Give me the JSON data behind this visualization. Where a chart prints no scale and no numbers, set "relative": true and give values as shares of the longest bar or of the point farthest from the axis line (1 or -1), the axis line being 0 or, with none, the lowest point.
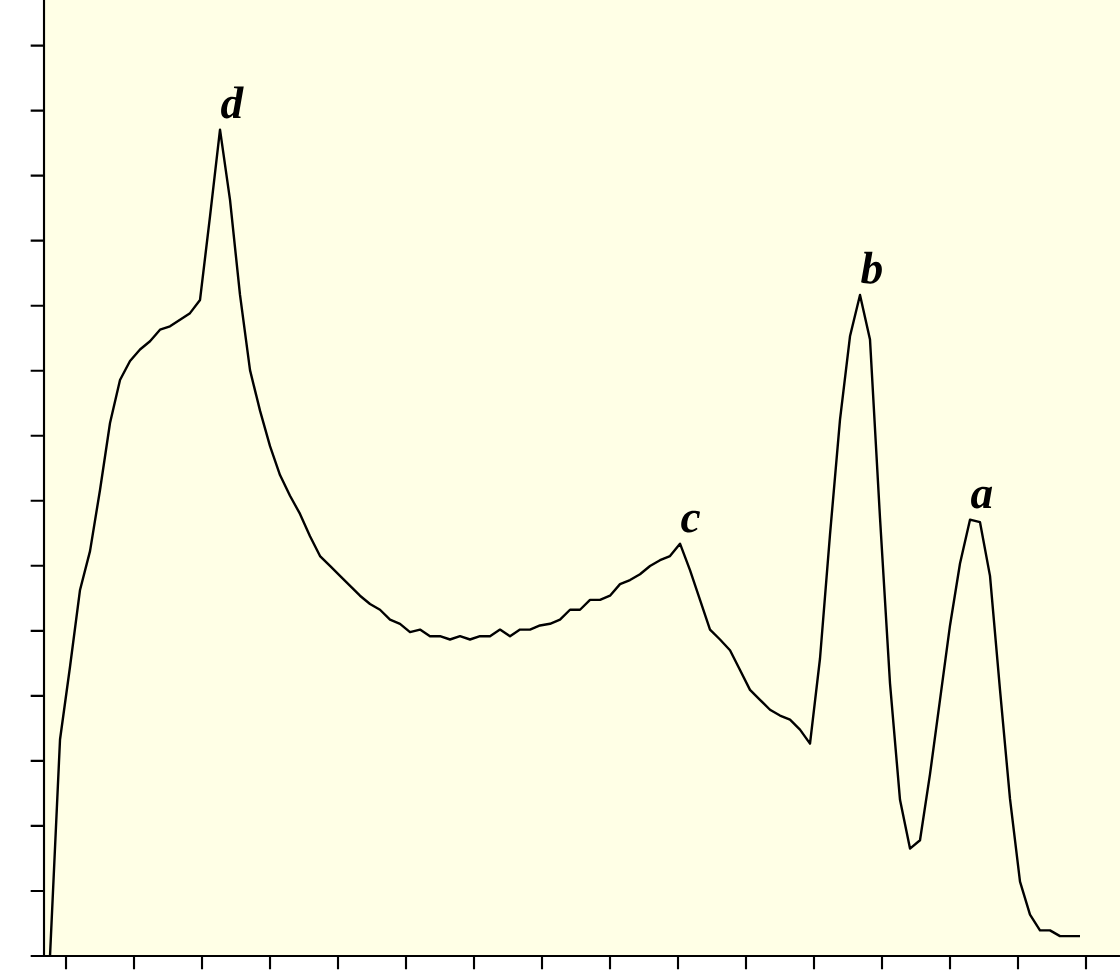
{
  "chart_data": {
    "type": "line",
    "relative": true,
    "color": "#000000",
    "categories": [
      null,
      null,
      null,
      null,
      null,
      null,
      null,
      null,
      null,
      null,
      null,
      null,
      null,
      null,
      null,
      null,
      null,
      null,
      null,
      null,
      null,
      null,
      null,
      null,
      null,
      null,
      null,
      null,
      null,
      null,
      null,
      null,
      null,
      null,
      null,
      null,
      null,
      null,
      null,
      null,
      null,
      null,
      null,
      null,
      null,
      null,
      null,
      null,
      null,
      null,
      null,
      null,
      null,
      null,
      null,
      null,
      null,
      null,
      null,
      null,
      null,
      null,
      null,
      null,
      null,
      null,
      null,
      null,
      null,
      null,
      null,
      null,
      null,
      null,
      null,
      null,
      null,
      null,
      null,
      null,
      null,
      null,
      null,
      null,
      null,
      null,
      null,
      null,
      null,
      null,
      null,
      null,
      null,
      null,
      null,
      null,
      null,
      null,
      null,
      null,
      null,
      null,
      null,
      null
    ],
    "values": [
      0,
      0.262,
      0.35,
      0.443,
      0.49,
      0.564,
      0.645,
      0.697,
      0.72,
      0.734,
      0.744,
      0.758,
      0.762,
      0.77,
      0.778,
      0.794,
      0.895,
      1,
      0.915,
      0.8,
      0.709,
      0.66,
      0.617,
      0.582,
      0.557,
      0.535,
      0.508,
      0.484,
      0.472,
      0.46,
      0.448,
      0.436,
      0.426,
      0.419,
      0.407,
      0.402,
      0.392,
      0.395,
      0.387,
      0.387,
      0.383,
      0.387,
      0.383,
      0.387,
      0.387,
      0.395,
      0.387,
      0.395,
      0.395,
      0.4,
      0.402,
      0.407,
      0.419,
      0.419,
      0.431,
      0.431,
      0.436,
      0.45,
      0.455,
      0.462,
      0.472,
      0.479,
      0.484,
      0.499,
      0.467,
      0.431,
      0.395,
      0.383,
      0.37,
      0.346,
      0.322,
      0.31,
      0.298,
      0.291,
      0.286,
      0.274,
      0.257,
      0.36,
      0.51,
      0.649,
      0.75,
      0.8,
      0.746,
      0.53,
      0.33,
      0.189,
      0.13,
      0.14,
      0.22,
      0.31,
      0.4,
      0.475,
      0.528,
      0.525,
      0.46,
      0.322,
      0.19,
      0.09,
      0.05,
      0.031,
      0.031,
      0.024,
      0.024,
      0.024
    ],
    "annotations": [
      "d",
      "b",
      "a",
      "c"
    ]
  }
}
